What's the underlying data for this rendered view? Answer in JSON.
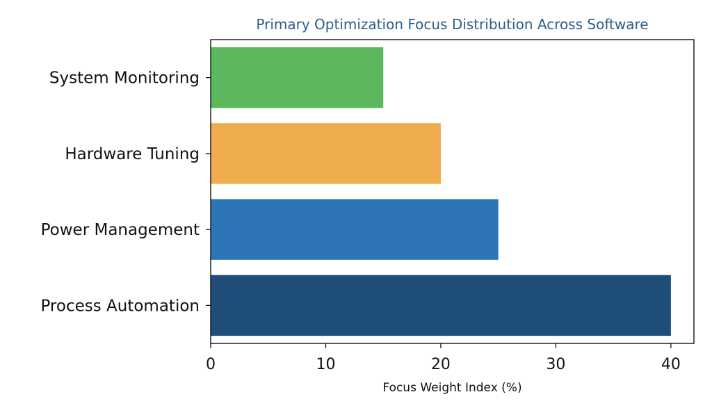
{
  "chart_data": {
    "type": "bar",
    "orientation": "horizontal",
    "title": "Primary Optimization Focus Distribution Across Software",
    "xlabel": "Focus Weight Index (%)",
    "ylabel": "",
    "categories": [
      "Process Automation",
      "Power Management",
      "Hardware Tuning",
      "System Monitoring"
    ],
    "values": [
      40,
      25,
      20,
      15
    ],
    "colors": [
      "#1f4e79",
      "#2e75b6",
      "#f0ad4e",
      "#5cb85c"
    ],
    "xlim": [
      0,
      42
    ],
    "xticks": [
      0,
      10,
      20,
      30,
      40
    ],
    "grid": false,
    "legend": "none"
  }
}
